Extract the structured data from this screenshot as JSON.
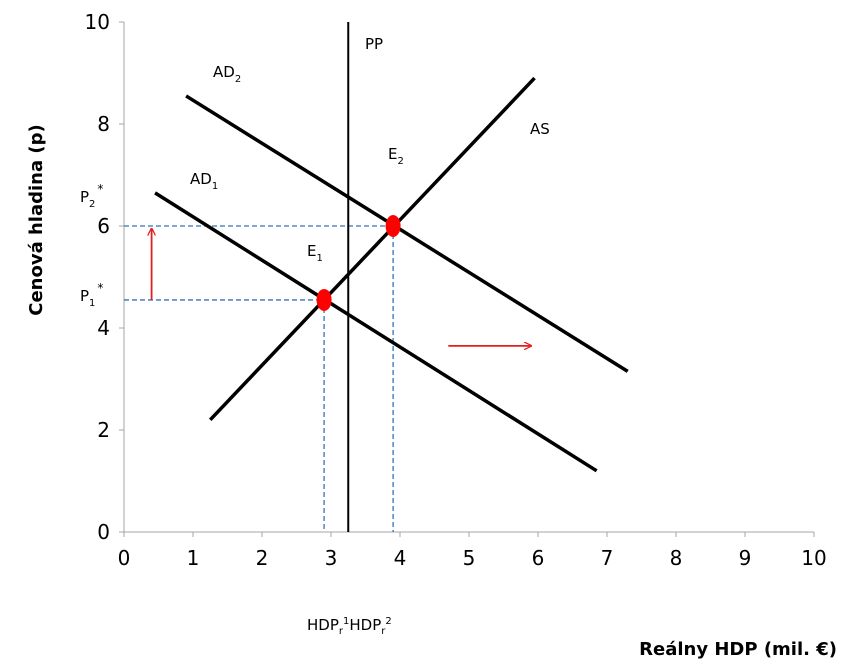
{
  "chart_data": {
    "type": "line",
    "xlabel": "Reálny HDP (mil. €)",
    "ylabel": "Cenová hladina (p)",
    "xlim": [
      0,
      10
    ],
    "ylim": [
      0,
      10
    ],
    "x_ticks": [
      "0",
      "1",
      "2",
      "3",
      "4",
      "5",
      "6",
      "7",
      "8",
      "9",
      "10"
    ],
    "y_ticks": [
      "0",
      "2",
      "4",
      "6",
      "8",
      "10"
    ],
    "grid": false,
    "legend": "none",
    "colors": {
      "line": "#000000",
      "dashed": "#2E75B6",
      "equilibrium": "#FF0000",
      "arrow": "#E02020"
    },
    "series": [
      {
        "name": "AS",
        "x": [
          1.25,
          5.95
        ],
        "y": [
          2.2,
          8.9
        ]
      },
      {
        "name": "AD₁",
        "x": [
          0.45,
          6.85
        ],
        "y": [
          6.65,
          1.2
        ]
      },
      {
        "name": "AD₂",
        "x": [
          0.9,
          7.3
        ],
        "y": [
          8.55,
          3.15
        ]
      },
      {
        "name": "PP",
        "x": [
          3.25,
          3.25
        ],
        "y": [
          0,
          10
        ]
      }
    ],
    "points": [
      {
        "name": "E₁",
        "x": 2.9,
        "y": 4.55
      },
      {
        "name": "E₂",
        "x": 3.9,
        "y": 6.0
      }
    ],
    "labels": {
      "ad2": {
        "base": "AD",
        "sub": "2"
      },
      "ad1": {
        "base": "AD",
        "sub": "1"
      },
      "as": "AS",
      "pp": "PP",
      "e1": {
        "base": "E",
        "sub": "1"
      },
      "e2": {
        "base": "E",
        "sub": "2"
      },
      "p1": {
        "base": "P",
        "sub": "1",
        "sup": "*"
      },
      "p2": {
        "base": "P",
        "sub": "2",
        "sup": "*"
      },
      "hdp1": {
        "base": "HDP",
        "sub": "r",
        "sup": "1"
      },
      "hdp2": {
        "base": "HDP",
        "sub": "r",
        "sup": "2"
      }
    },
    "arrows": [
      {
        "direction": "up",
        "x": 0.4,
        "y_from": 4.55,
        "y_to": 5.95
      },
      {
        "direction": "right",
        "y": 3.65,
        "x_from": 4.7,
        "x_to": 5.9
      }
    ]
  }
}
